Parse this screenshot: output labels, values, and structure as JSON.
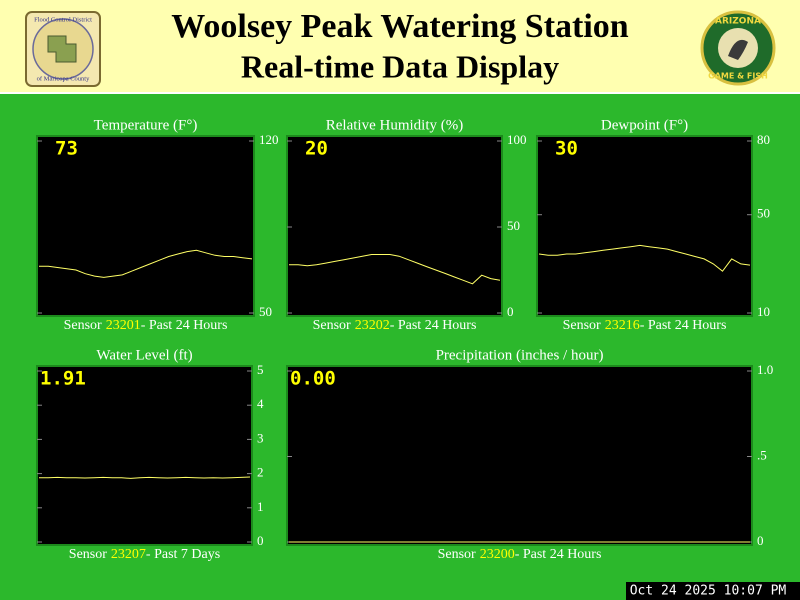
{
  "header": {
    "title_line1": "Woolsey Peak Watering Station",
    "title_line2": "Real-time Data Display",
    "left_logo": {
      "line1": "Flood Control District",
      "line2": "of Maricopa County"
    },
    "right_logo": {
      "line1": "ARIZONA",
      "line2": "GAME & FISH"
    }
  },
  "panels": [
    {
      "title": "Temperature (F°)",
      "current": "73",
      "sensor_label": "Sensor",
      "sensor_id": "23201",
      "period": "- Past 24 Hours",
      "ylim": [
        50,
        120
      ],
      "yticks": [
        50,
        120
      ],
      "values": [
        69,
        69,
        68.5,
        68,
        67.5,
        66,
        65,
        64.5,
        65,
        65.5,
        67,
        68.5,
        70,
        71.5,
        73,
        74,
        75,
        75.5,
        74.5,
        73.5,
        73,
        73,
        72.5,
        72
      ]
    },
    {
      "title": "Relative Humidity (%)",
      "current": "20",
      "sensor_label": "Sensor",
      "sensor_id": "23202",
      "period": "- Past 24 Hours",
      "ylim": [
        0,
        100
      ],
      "yticks": [
        0,
        50,
        100
      ],
      "values": [
        28,
        28,
        27.5,
        28,
        29,
        30,
        31,
        32,
        33,
        34,
        34,
        34,
        33,
        31,
        29,
        27,
        25,
        23,
        21,
        19,
        17,
        22,
        20,
        19
      ]
    },
    {
      "title": "Dewpoint (F°)",
      "current": "30",
      "sensor_label": "Sensor",
      "sensor_id": "23216",
      "period": "- Past 24 Hours",
      "ylim": [
        10,
        80
      ],
      "yticks": [
        10,
        50,
        80
      ],
      "values": [
        34,
        33.5,
        33.5,
        34,
        34,
        34.5,
        35,
        35.5,
        36,
        36.5,
        37,
        37.5,
        37,
        36.5,
        36,
        35,
        34,
        33,
        32,
        30,
        27,
        32,
        30,
        29.5
      ]
    },
    {
      "title": "Water Level (ft)",
      "current": "1.91",
      "sensor_label": "Sensor",
      "sensor_id": "23207",
      "period": "- Past 7 Days",
      "ylim": [
        0,
        5
      ],
      "yticks": [
        0,
        1,
        2,
        3,
        4,
        5
      ],
      "values": [
        1.88,
        1.88,
        1.89,
        1.88,
        1.88,
        1.87,
        1.88,
        1.89,
        1.88,
        1.88,
        1.86,
        1.88,
        1.89,
        1.88,
        1.87,
        1.88,
        1.89,
        1.88,
        1.87,
        1.88,
        1.87,
        1.88,
        1.89,
        1.9
      ]
    },
    {
      "title": "Precipitation (inches / hour)",
      "current": "0.00",
      "sensor_label": "Sensor",
      "sensor_id": "23200",
      "period": "- Past 24 Hours",
      "ylim": [
        0,
        1
      ],
      "yticks": [
        0,
        {
          "value": 0.5,
          "label": ".5"
        },
        {
          "value": 1,
          "label": "1.0"
        }
      ],
      "values": [
        0,
        0,
        0,
        0,
        0,
        0,
        0,
        0,
        0,
        0,
        0,
        0,
        0,
        0,
        0,
        0,
        0,
        0,
        0,
        0,
        0,
        0,
        0,
        0
      ]
    }
  ],
  "timestamp": "Oct 24 2025 10:07 PM"
}
